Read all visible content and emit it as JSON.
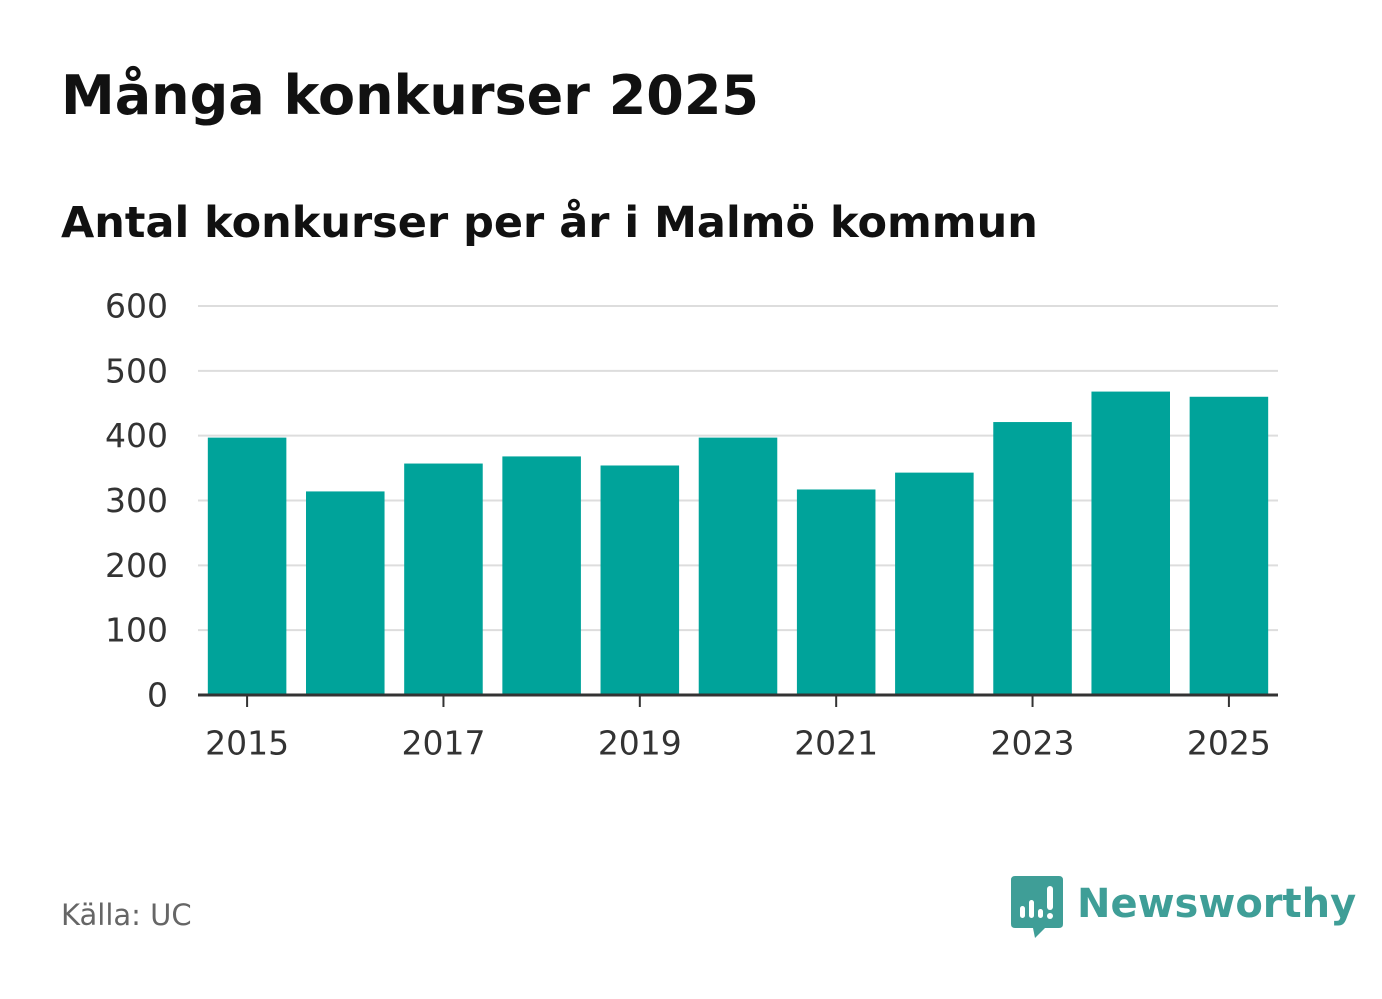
{
  "header": {
    "title": "Många konkurser 2025",
    "subtitle": "Antal konkurser per år i Malmö kommun"
  },
  "footer": {
    "source": "Källa: UC",
    "brand": "Newsworthy",
    "brand_icon": "newsworthy-logo-icon"
  },
  "colors": {
    "bar": "#00a39a",
    "grid": "#dddddd",
    "axis": "#333333",
    "brand": "#3f9e97"
  },
  "chart_data": {
    "type": "bar",
    "title": "Många konkurser 2025",
    "subtitle": "Antal konkurser per år i Malmö kommun",
    "xlabel": "",
    "ylabel": "",
    "categories": [
      2015,
      2016,
      2017,
      2018,
      2019,
      2020,
      2021,
      2022,
      2023,
      2024,
      2025
    ],
    "values": [
      397,
      314,
      357,
      368,
      354,
      397,
      317,
      343,
      421,
      468,
      460
    ],
    "ylim": [
      0,
      600
    ],
    "yticks": [
      0,
      100,
      200,
      300,
      400,
      500,
      600
    ],
    "xticks": [
      2015,
      2017,
      2019,
      2021,
      2023,
      2025
    ],
    "grid": true,
    "legend": "none"
  }
}
